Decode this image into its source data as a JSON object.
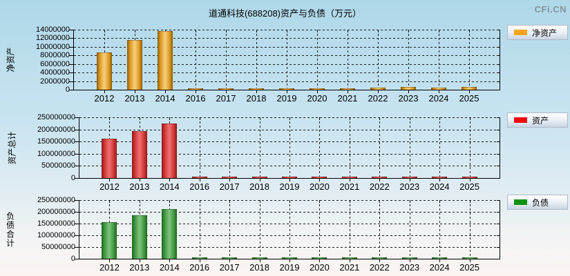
{
  "page": {
    "title": "道通科技(688208)资产与负债（万元）",
    "watermark": "CFi.CN"
  },
  "chart_data": [
    {
      "type": "bar",
      "name": "net-assets",
      "ylabel": "净资产",
      "ylabel_upright": false,
      "legend": "净资产",
      "legend_position": "right-top",
      "grid": true,
      "ylim": [
        0,
        14000000
      ],
      "y_step": 2000000,
      "colors": {
        "swatch": "#f6a41c",
        "edge": "#8a5a06",
        "main": "#d8941c",
        "highlight": "#f4ca74"
      },
      "categories": [
        "2012",
        "2013",
        "2014",
        "2016",
        "2017",
        "2018",
        "2019",
        "2020",
        "2021",
        "2022",
        "2023",
        "2024",
        "2025"
      ],
      "values": [
        8500000,
        11400000,
        13500000,
        160000,
        170000,
        180000,
        180000,
        190000,
        200000,
        380000,
        410000,
        400000,
        410000
      ]
    },
    {
      "type": "bar",
      "name": "total-assets",
      "ylabel": "资产总计",
      "ylabel_upright": false,
      "legend": "资产",
      "legend_position": "right-top",
      "grid": true,
      "ylim": [
        0,
        250000000
      ],
      "y_step": 50000000,
      "colors": {
        "swatch": "#ee0b0b",
        "edge": "#911717",
        "main": "#cc3333",
        "highlight": "#ec6b6b"
      },
      "categories": [
        "2012",
        "2013",
        "2014",
        "2016",
        "2017",
        "2018",
        "2019",
        "2020",
        "2021",
        "2022",
        "2023",
        "2024",
        "2025"
      ],
      "values": [
        160000000,
        190000000,
        221000000,
        1800000,
        2100000,
        2300000,
        2300000,
        2500000,
        2600000,
        3300000,
        3500000,
        3400000,
        3500000
      ]
    },
    {
      "type": "bar",
      "name": "total-liabilities",
      "ylabel": "负债合计",
      "ylabel_upright": true,
      "legend": "负债",
      "legend_position": "right-top",
      "grid": true,
      "ylim": [
        0,
        250000000
      ],
      "y_step": 50000000,
      "colors": {
        "swatch": "#0f930f",
        "edge": "#1e641e",
        "main": "#3c933c",
        "highlight": "#78bf78"
      },
      "categories": [
        "2012",
        "2013",
        "2014",
        "2016",
        "2017",
        "2018",
        "2019",
        "2020",
        "2021",
        "2022",
        "2023",
        "2024",
        "2025"
      ],
      "values": [
        153000000,
        181000000,
        208000000,
        1500000,
        1800000,
        2000000,
        2000000,
        2200000,
        2300000,
        2900000,
        3100000,
        3000000,
        3100000
      ]
    }
  ]
}
